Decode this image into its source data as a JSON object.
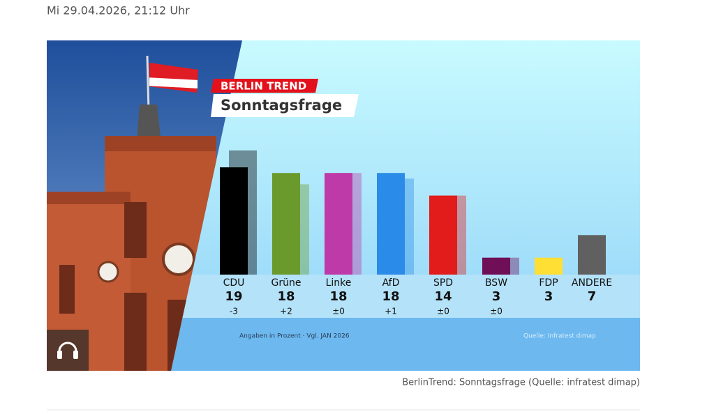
{
  "date": "Mi 29.04.2026, 21:12 Uhr",
  "caption": "BerlinTrend: Sonntagsfrage (Quelle: infratest dimap)",
  "chart_data": {
    "type": "bar",
    "kicker": "BERLIN TREND",
    "title": "Sonntagsfrage",
    "note": "Angaben in Prozent · Vgl. JAN 2026",
    "source": "Quelle: Infratest dimap",
    "categories": [
      "CDU",
      "Grüne",
      "Linke",
      "AfD",
      "SPD",
      "BSW",
      "FDP",
      "ANDERE"
    ],
    "values": [
      19,
      18,
      18,
      18,
      14,
      3,
      3,
      7
    ],
    "colors": [
      "#000000",
      "#6a9a2c",
      "#bd3aa8",
      "#2a8be8",
      "#e21b1b",
      "#6e0f57",
      "#ffdf33",
      "#606060"
    ],
    "previous": {
      "values": [
        22,
        16,
        18,
        17,
        14,
        3,
        null,
        null
      ]
    },
    "changes": {
      "values": [
        -3,
        2,
        0,
        1,
        0,
        0,
        null,
        null
      ],
      "value_labels": [
        "-3",
        "+2",
        "±0",
        "+1",
        "±0",
        "±0",
        null,
        null
      ]
    }
  }
}
